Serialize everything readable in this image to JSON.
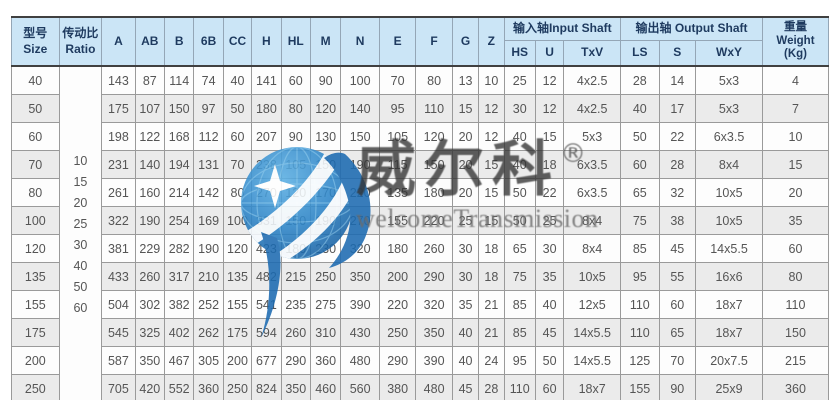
{
  "watermark": {
    "brand_cn": "威尔科",
    "registered_mark": "®",
    "brand_en": "welcomeTransmission",
    "logo": "globe-swoosh-logo",
    "colors": {
      "globe_light": "#5cb0e4",
      "globe_dark": "#155d9f",
      "cn_text": "#333333",
      "en_text": "#6b6b6b"
    }
  },
  "table": {
    "header": {
      "size_cn": "型号",
      "size_en": "Size",
      "ratio_cn": "传动比",
      "ratio_en": "Ratio",
      "dim_columns": [
        "A",
        "AB",
        "B",
        "6B",
        "CC",
        "H",
        "HL",
        "M",
        "N",
        "E",
        "F",
        "G",
        "Z"
      ],
      "input_shaft_group": "输入轴Input Shaft",
      "input_shaft_cols": [
        "HS",
        "U",
        "TxV"
      ],
      "output_shaft_group": "输出轴 Output Shaft",
      "output_shaft_cols": [
        "LS",
        "S",
        "WxY"
      ],
      "weight_cn": "重量",
      "weight_en": "Weight",
      "weight_unit": "(Kg)"
    },
    "ratio_values": [
      "10",
      "15",
      "20",
      "25",
      "30",
      "40",
      "50",
      "60"
    ],
    "rows": [
      {
        "size": "40",
        "values": [
          "143",
          "87",
          "114",
          "74",
          "40",
          "141",
          "60",
          "90",
          "100",
          "70",
          "80",
          "13",
          "10",
          "25",
          "12",
          "4x2.5",
          "28",
          "14",
          "5x3",
          "4"
        ]
      },
      {
        "size": "50",
        "values": [
          "175",
          "107",
          "150",
          "97",
          "50",
          "180",
          "80",
          "120",
          "140",
          "95",
          "110",
          "15",
          "12",
          "30",
          "12",
          "4x2.5",
          "40",
          "17",
          "5x3",
          "7"
        ]
      },
      {
        "size": "60",
        "values": [
          "198",
          "122",
          "168",
          "112",
          "60",
          "207",
          "90",
          "130",
          "150",
          "105",
          "120",
          "20",
          "12",
          "40",
          "15",
          "5x3",
          "50",
          "22",
          "6x3.5",
          "10"
        ]
      },
      {
        "size": "70",
        "values": [
          "231",
          "140",
          "194",
          "131",
          "70",
          "238",
          "105",
          "150",
          "190",
          "115",
          "150",
          "20",
          "15",
          "40",
          "18",
          "6x3.5",
          "60",
          "28",
          "8x4",
          "15"
        ]
      },
      {
        "size": "80",
        "values": [
          "261",
          "160",
          "214",
          "142",
          "80",
          "270",
          "120",
          "170",
          "220",
          "135",
          "180",
          "20",
          "15",
          "50",
          "22",
          "6x3.5",
          "65",
          "32",
          "10x5",
          "20"
        ]
      },
      {
        "size": "100",
        "values": [
          "322",
          "190",
          "254",
          "169",
          "100",
          "331",
          "150",
          "190",
          "270",
          "155",
          "220",
          "25",
          "15",
          "50",
          "25",
          "8x4",
          "75",
          "38",
          "10x5",
          "35"
        ]
      },
      {
        "size": "120",
        "values": [
          "381",
          "229",
          "282",
          "190",
          "120",
          "423",
          "180",
          "230",
          "320",
          "180",
          "260",
          "30",
          "18",
          "65",
          "30",
          "8x4",
          "85",
          "45",
          "14x5.5",
          "60"
        ]
      },
      {
        "size": "135",
        "values": [
          "433",
          "260",
          "317",
          "210",
          "135",
          "482",
          "215",
          "250",
          "350",
          "200",
          "290",
          "30",
          "18",
          "75",
          "35",
          "10x5",
          "95",
          "55",
          "16x6",
          "80"
        ]
      },
      {
        "size": "155",
        "values": [
          "504",
          "302",
          "382",
          "252",
          "155",
          "541",
          "235",
          "275",
          "390",
          "220",
          "320",
          "35",
          "21",
          "85",
          "40",
          "12x5",
          "110",
          "60",
          "18x7",
          "110"
        ]
      },
      {
        "size": "175",
        "values": [
          "545",
          "325",
          "402",
          "262",
          "175",
          "594",
          "260",
          "310",
          "430",
          "250",
          "350",
          "40",
          "21",
          "85",
          "45",
          "14x5.5",
          "110",
          "65",
          "18x7",
          "150"
        ]
      },
      {
        "size": "200",
        "values": [
          "587",
          "350",
          "467",
          "305",
          "200",
          "677",
          "290",
          "360",
          "480",
          "290",
          "390",
          "40",
          "24",
          "95",
          "50",
          "14x5.5",
          "125",
          "70",
          "20x7.5",
          "215"
        ]
      },
      {
        "size": "250",
        "values": [
          "705",
          "420",
          "552",
          "360",
          "250",
          "824",
          "350",
          "460",
          "560",
          "380",
          "480",
          "45",
          "28",
          "110",
          "60",
          "18x7",
          "155",
          "90",
          "25x9",
          "360"
        ]
      }
    ],
    "colors": {
      "header_bg": "#cbe5f6",
      "header_text": "#1e3a5f",
      "row_bg": "#fdfdfd",
      "row_alt_bg": "#ebebeb",
      "border": "#9a9a9a",
      "heavy_border": "#404040",
      "cell_text": "#555555"
    }
  }
}
